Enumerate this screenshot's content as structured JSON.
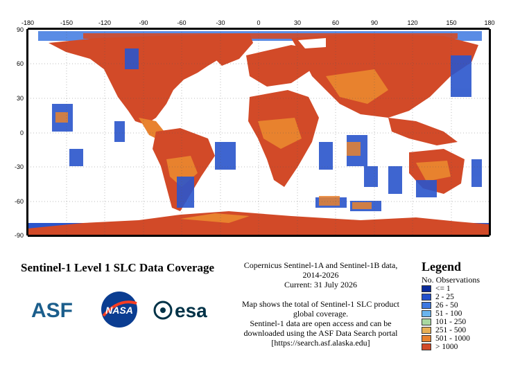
{
  "map": {
    "x_ticks": [
      "-180",
      "-150",
      "-120",
      "-90",
      "-60",
      "-30",
      "0",
      "30",
      "60",
      "90",
      "120",
      "150",
      "180"
    ],
    "y_ticks": [
      "90",
      "60",
      "30",
      "0",
      "-30",
      "-60",
      "-90"
    ],
    "ocean_color": "#ffffff",
    "land_primary_color": "#d9502a"
  },
  "title": "Sentinel-1 Level 1 SLC Data Coverage",
  "info": {
    "line1": "Copernicus Sentinel-1A and Sentinel-1B data,",
    "line2": "2014-2026",
    "line3": "Current: 31 July 2026",
    "line4": "Map shows the total of Sentinel-1 SLC product",
    "line5": "global coverage.",
    "line6": "Sentinel-1 data are open access and can be",
    "line7": "downloaded using the ASF Data Search portal",
    "line8": "[https://search.asf.alaska.edu]"
  },
  "logos": {
    "asf": "ASF",
    "nasa": "NASA",
    "esa": "esa"
  },
  "legend": {
    "title": "Legend",
    "subtitle": "No. Observations",
    "items": [
      {
        "label": "<= 1",
        "color": "#0a2a9a"
      },
      {
        "label": "2 - 25",
        "color": "#2250cc"
      },
      {
        "label": "26 - 50",
        "color": "#3d78e0"
      },
      {
        "label": "51 - 100",
        "color": "#6ab4ee"
      },
      {
        "label": "101 - 250",
        "color": "#a8d8a0"
      },
      {
        "label": "251 - 500",
        "color": "#e8b055"
      },
      {
        "label": "501 - 1000",
        "color": "#e8822e"
      },
      {
        "label": "> 1000",
        "color": "#d24a28"
      }
    ]
  }
}
